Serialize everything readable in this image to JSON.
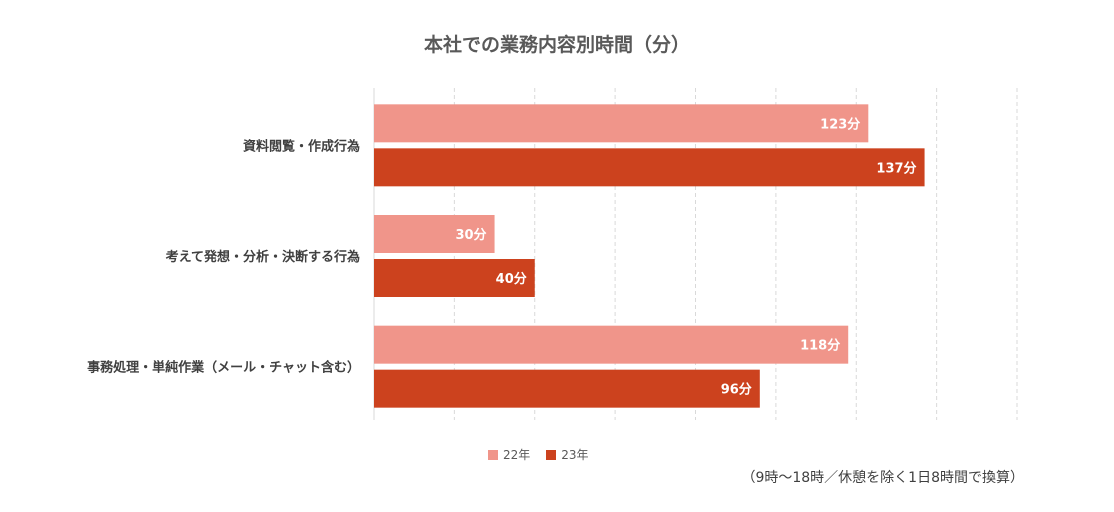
{
  "chart_data": {
    "type": "bar",
    "orientation": "horizontal",
    "title": "本社での業務内容別時間（分）",
    "categories": [
      "資料閲覧・作成行為",
      "考えて発想・分析・決断する行為",
      "事務処理・単純作業（メール・チャット含む）"
    ],
    "series": [
      {
        "name": "22年",
        "values": [
          123,
          30,
          118
        ],
        "labels": [
          "123分",
          "30分",
          "118分"
        ],
        "color": "#f0958a"
      },
      {
        "name": "23年",
        "values": [
          137,
          40,
          96
        ],
        "labels": [
          "137分",
          "40分",
          "96分"
        ],
        "color": "#cc421e"
      }
    ],
    "xlim": [
      0,
      160
    ],
    "grid": true,
    "legend_position": "bottom"
  },
  "note": "（9時〜18時／休憩を除く1日8時間で換算）"
}
